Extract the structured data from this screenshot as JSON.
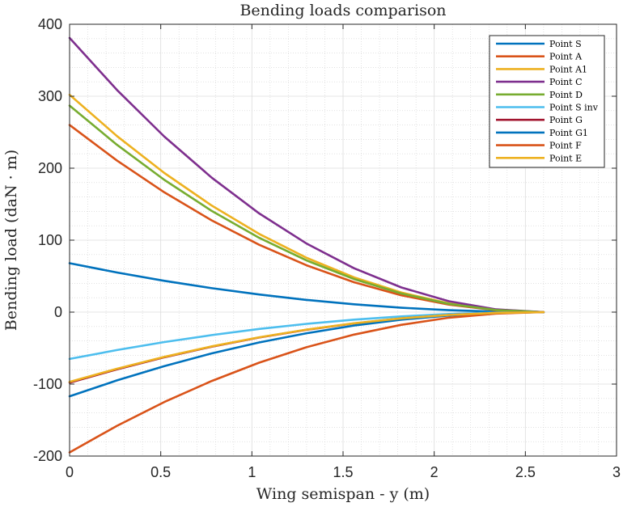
{
  "chart_data": {
    "type": "line",
    "title": "Bending loads comparison",
    "xlabel": "Wing semispan - y (m)",
    "ylabel": "Bending load (daN · m)",
    "xlim": [
      0,
      3
    ],
    "ylim": [
      -200,
      400
    ],
    "xticks": [
      0,
      0.5,
      1,
      1.5,
      2,
      2.5,
      3
    ],
    "xtick_labels": [
      "0",
      "0.5",
      "1",
      "1.5",
      "2",
      "2.5",
      "3"
    ],
    "yticks": [
      -200,
      -100,
      0,
      100,
      200,
      300,
      400
    ],
    "ytick_labels": [
      "-200",
      "-100",
      "0",
      "100",
      "200",
      "300",
      "400"
    ],
    "grid": true,
    "minor_grid": true,
    "legend_position": "top-right",
    "x": [
      0,
      0.26,
      0.52,
      0.78,
      1.04,
      1.3,
      1.56,
      1.82,
      2.08,
      2.34,
      2.6
    ],
    "series": [
      {
        "name": "Point S",
        "color": "#0072BD",
        "values": [
          68,
          55.1,
          43.5,
          33.3,
          24.5,
          17.0,
          10.9,
          6.1,
          2.7,
          0.7,
          0
        ]
      },
      {
        "name": "Point A",
        "color": "#D95319",
        "values": [
          260,
          210.6,
          166.4,
          127.4,
          93.6,
          65.0,
          41.6,
          23.4,
          10.4,
          2.6,
          0
        ]
      },
      {
        "name": "Point A1",
        "color": "#EDB120",
        "values": [
          302,
          244.6,
          193.3,
          148.0,
          108.7,
          75.5,
          48.3,
          27.2,
          12.1,
          3.0,
          0
        ]
      },
      {
        "name": "Point C",
        "color": "#7E2F8E",
        "values": [
          381,
          308.6,
          243.8,
          186.7,
          137.2,
          95.3,
          61.0,
          34.3,
          15.2,
          3.8,
          0
        ]
      },
      {
        "name": "Point D",
        "color": "#77AC30",
        "values": [
          287,
          232.5,
          183.7,
          140.6,
          103.3,
          71.8,
          45.9,
          25.8,
          11.5,
          2.9,
          0
        ]
      },
      {
        "name": "Point S inv",
        "color": "#4DBEEE",
        "values": [
          -65,
          -52.7,
          -41.6,
          -31.9,
          -23.4,
          -16.3,
          -10.4,
          -5.9,
          -2.6,
          -0.7,
          0
        ]
      },
      {
        "name": "Point G",
        "color": "#A2142F",
        "values": [
          -98,
          -79.4,
          -62.7,
          -48.0,
          -35.3,
          -24.5,
          -15.7,
          -8.8,
          -3.9,
          -1.0,
          0
        ]
      },
      {
        "name": "Point G1",
        "color": "#0072BD",
        "values": [
          -117,
          -94.8,
          -74.9,
          -57.3,
          -42.1,
          -29.3,
          -18.7,
          -10.5,
          -4.7,
          -1.2,
          0
        ]
      },
      {
        "name": "Point F",
        "color": "#D95319",
        "values": [
          -195,
          -158.0,
          -124.8,
          -95.6,
          -70.2,
          -48.8,
          -31.2,
          -17.6,
          -7.8,
          -2.0,
          0
        ]
      },
      {
        "name": "Point E",
        "color": "#EDB120",
        "values": [
          -97,
          -78.6,
          -62.1,
          -47.5,
          -34.9,
          -24.3,
          -15.5,
          -8.7,
          -3.9,
          -1.0,
          0
        ]
      }
    ]
  }
}
